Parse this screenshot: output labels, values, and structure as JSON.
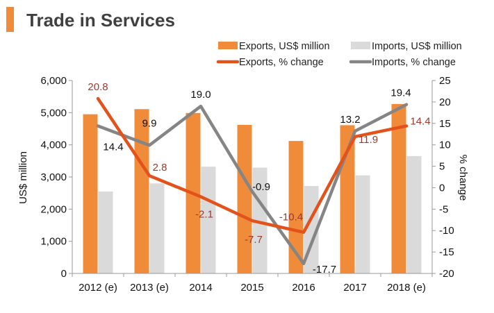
{
  "title": "Trade in Services",
  "colors": {
    "accent": "#F08B3A",
    "exports_bar": "#F08B3A",
    "imports_bar": "#DADADA",
    "exports_line": "#E2521A",
    "imports_line": "#858585",
    "exports_label": "#9B3A2C",
    "imports_label": "#111111",
    "title": "#404040"
  },
  "chart_data": {
    "type": "bar",
    "title": "Trade in Services",
    "categories": [
      "2012 (e)",
      "2013 (e)",
      "2014",
      "2015",
      "2016",
      "2017",
      "2018 (e)"
    ],
    "series": [
      {
        "name": "Exports, US$ million",
        "type": "bar",
        "axis": "left",
        "values": [
          4950,
          5110,
          4990,
          4620,
          4120,
          4610,
          5270
        ]
      },
      {
        "name": "Imports, US$ million",
        "type": "bar",
        "axis": "left",
        "values": [
          2550,
          2800,
          3320,
          3290,
          2720,
          3050,
          3650
        ]
      },
      {
        "name": "Exports, % change",
        "type": "line",
        "axis": "right",
        "values": [
          20.8,
          2.8,
          -2.1,
          -7.7,
          -10.4,
          11.9,
          14.4
        ],
        "labels": [
          "20.8",
          "2.8",
          "-2.1",
          "-7.7",
          "-10.4",
          "11.9",
          "14.4"
        ]
      },
      {
        "name": "Imports, % change",
        "type": "line",
        "axis": "right",
        "values": [
          14.4,
          9.9,
          19.0,
          -0.9,
          -17.7,
          13.2,
          19.4
        ],
        "labels": [
          "14.4",
          "9.9",
          "19.0",
          "-0.9",
          "-17.7",
          "13.2",
          "19.4"
        ]
      }
    ],
    "ylabel": "US$ million",
    "y2label": "% change",
    "ylim": [
      0,
      6000
    ],
    "y2lim": [
      -20,
      25
    ],
    "yticks": [
      "0",
      "1,000",
      "2,000",
      "3,000",
      "4,000",
      "5,000",
      "6,000"
    ],
    "y2ticks": [
      "-20",
      "-15",
      "-10",
      "-5",
      "0",
      "5",
      "10",
      "15",
      "20",
      "25"
    ],
    "legend": "top",
    "grid": false
  }
}
